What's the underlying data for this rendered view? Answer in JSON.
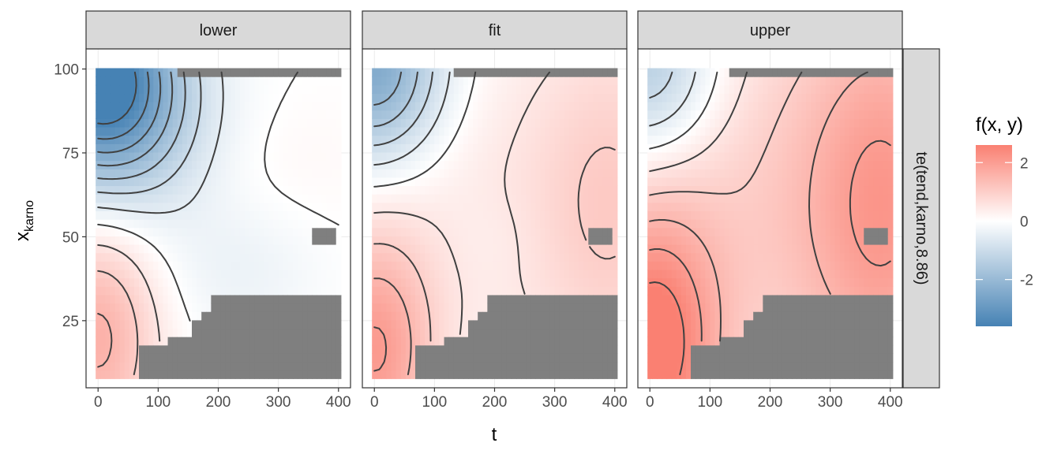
{
  "chart_data": {
    "type": "heatmap",
    "facets": [
      {
        "label": "lower"
      },
      {
        "label": "fit"
      },
      {
        "label": "upper"
      }
    ],
    "row_strip": "te(tend,karno,8.86)",
    "xlabel": "t",
    "ylabel": "x",
    "ylabel_sub": "karno",
    "xlim": [
      -20,
      420
    ],
    "ylim": [
      5,
      106
    ],
    "x_ticks": [
      0,
      100,
      200,
      300,
      400
    ],
    "y_ticks": [
      25,
      50,
      75,
      100
    ],
    "grid": true,
    "legend": {
      "title": "f(x, y)",
      "position": "right",
      "range": [
        -3.6,
        2.6
      ],
      "ticks": [
        2,
        0,
        -2
      ],
      "low_color": "#4682b4",
      "mid_color": "#ffffff",
      "high_color": "#fa8072"
    },
    "na_color": "#7f7f7f",
    "excluded_region": {
      "top_strip": {
        "x": [
          130,
          400
        ],
        "y": [
          98.5,
          100
        ]
      },
      "notch": {
        "x": [
          355,
          395
        ],
        "y": [
          47,
          52
        ]
      },
      "bottom_steps": [
        {
          "x": [
            188,
            400
          ],
          "y": [
            9,
            32
          ]
        },
        {
          "x": [
            176,
            188
          ],
          "y": [
            9,
            28
          ]
        },
        {
          "x": [
            155,
            176
          ],
          "y": [
            9,
            25
          ]
        },
        {
          "x": [
            120,
            155
          ],
          "y": [
            9,
            20
          ]
        },
        {
          "x": [
            70,
            120
          ],
          "y": [
            9,
            18
          ]
        },
        {
          "x": [
            88,
            120
          ],
          "y": [
            9,
            14
          ]
        }
      ]
    },
    "surfaces": [
      {
        "name": "lower",
        "blobs": [
          {
            "t": 0,
            "k": 100,
            "value": -3.4,
            "sx": 90,
            "sy": 20
          },
          {
            "t": 40,
            "k": 82,
            "value": -1.2,
            "sx": 110,
            "sy": 20
          },
          {
            "t": 240,
            "k": 40,
            "value": -0.35,
            "sx": 90,
            "sy": 15
          },
          {
            "t": 0,
            "k": 20,
            "value": 1.6,
            "sx": 70,
            "sy": 25
          },
          {
            "t": 300,
            "k": 72,
            "value": 0.15,
            "sx": 120,
            "sy": 15
          }
        ]
      },
      {
        "name": "fit",
        "blobs": [
          {
            "t": 0,
            "k": 100,
            "value": -2.6,
            "sx": 80,
            "sy": 20
          },
          {
            "t": 0,
            "k": 15,
            "value": 1.9,
            "sx": 70,
            "sy": 25
          },
          {
            "t": 400,
            "k": 60,
            "value": 0.9,
            "sx": 100,
            "sy": 40
          },
          {
            "t": 200,
            "k": 50,
            "value": -0.1,
            "sx": 60,
            "sy": 10
          },
          {
            "t": 150,
            "k": 60,
            "value": 0.4,
            "sx": 200,
            "sy": 40
          }
        ]
      },
      {
        "name": "upper",
        "blobs": [
          {
            "t": 0,
            "k": 100,
            "value": -1.7,
            "sx": 80,
            "sy": 20
          },
          {
            "t": 0,
            "k": 15,
            "value": 2.6,
            "sx": 80,
            "sy": 30
          },
          {
            "t": 400,
            "k": 60,
            "value": 1.6,
            "sx": 100,
            "sy": 45
          },
          {
            "t": 200,
            "k": 60,
            "value": 0.9,
            "sx": 200,
            "sy": 50
          }
        ]
      }
    ]
  }
}
